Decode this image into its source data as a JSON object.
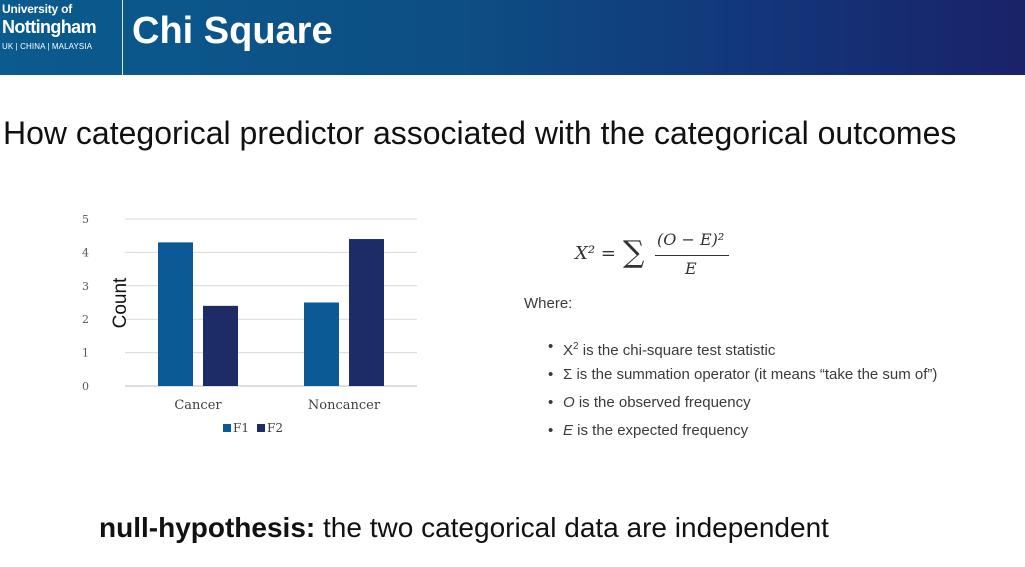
{
  "header": {
    "logo_line1": "University of",
    "logo_line2": "Nottingham",
    "logo_line3": "UK | CHINA | MALAYSIA",
    "title": "Chi Square"
  },
  "subtitle": "How categorical predictor associated with the categorical outcomes",
  "formula": {
    "lhs": "X² =",
    "sigma": "∑",
    "numerator": "(O − E)²",
    "denominator": "E"
  },
  "where_label": "Where:",
  "bullets": [
    {
      "symbol": "X",
      "sup": "2",
      "text": " is the chi-square test statistic"
    },
    {
      "symbol": "Σ",
      "text": " is the summation operator (it means “take the sum of”)"
    },
    {
      "symbol": "O",
      "text": " is the observed frequency"
    },
    {
      "symbol": "E",
      "text": " is the expected frequency"
    }
  ],
  "footer": {
    "bold": "null-hypothesis:",
    "text": " the two categorical data are independent"
  },
  "chart_data": {
    "type": "bar",
    "categories": [
      "Cancer",
      "Noncancer"
    ],
    "series": [
      {
        "name": "F1",
        "values": [
          4.3,
          2.5
        ],
        "color": "#0b5a96"
      },
      {
        "name": "F2",
        "values": [
          2.4,
          4.4
        ],
        "color": "#1d2b66"
      }
    ],
    "ylabel": "Count",
    "ylim": [
      0,
      5
    ],
    "yticks": [
      "0",
      "1",
      "2",
      "3",
      "4",
      "5"
    ],
    "grid": true,
    "legend": "bottom"
  }
}
